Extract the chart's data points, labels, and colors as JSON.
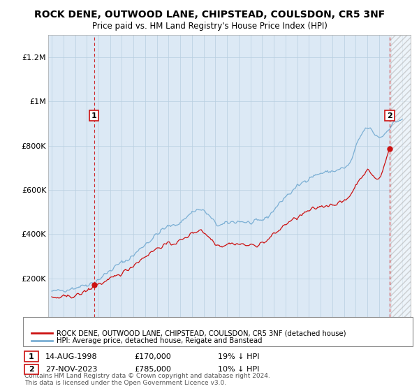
{
  "title": "ROCK DENE, OUTWOOD LANE, CHIPSTEAD, COULSDON, CR5 3NF",
  "subtitle": "Price paid vs. HM Land Registry's House Price Index (HPI)",
  "legend_line1": "ROCK DENE, OUTWOOD LANE, CHIPSTEAD, COULSDON, CR5 3NF (detached house)",
  "legend_line2": "HPI: Average price, detached house, Reigate and Banstead",
  "footer": "Contains HM Land Registry data © Crown copyright and database right 2024.\nThis data is licensed under the Open Government Licence v3.0.",
  "sale1_date": "14-AUG-1998",
  "sale1_price": 170000,
  "sale1_note": "19% ↓ HPI",
  "sale2_date": "27-NOV-2023",
  "sale2_price": 785000,
  "sale2_note": "10% ↓ HPI",
  "hpi_color": "#7bafd4",
  "price_color": "#cc1111",
  "bg_color": "#dce9f5",
  "sale_marker_color": "#cc1111",
  "vline_color": "#cc1111",
  "ylim": [
    0,
    1300000
  ],
  "yticks": [
    0,
    200000,
    400000,
    600000,
    800000,
    1000000,
    1200000
  ],
  "sale1_x": 1998.62,
  "sale1_y": 170000,
  "sale2_x": 2023.9,
  "sale2_y": 785000,
  "xmin": 1995,
  "xmax": 2025.5
}
